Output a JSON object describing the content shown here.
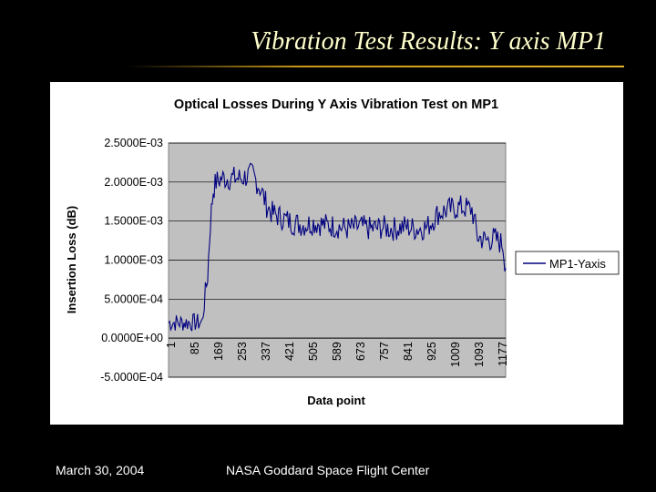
{
  "slide": {
    "title": "Vibration Test Results: Y axis MP1",
    "footer_date": "March 30, 2004",
    "footer_center": "NASA Goddard Space Flight Center"
  },
  "colors": {
    "background": "#000000",
    "title_text": "#ffffcc",
    "plot_area": "#c0c0c0",
    "series_line": "#000080"
  },
  "chart_data": {
    "type": "line",
    "title": "Optical Losses During Y Axis Vibration Test on  MP1",
    "xlabel": "Data point",
    "ylabel": "Insertion Loss (dB)",
    "ylim": [
      -0.0005,
      0.0025
    ],
    "y_ticks": [
      -0.0005,
      0.0,
      0.0005,
      0.001,
      0.0015,
      0.002,
      0.0025
    ],
    "y_tick_labels": [
      "-5.0000E-04",
      "0.0000E+00",
      "5.0000E-04",
      "1.0000E-03",
      "1.5000E-03",
      "2.0000E-03",
      "2.5000E-03"
    ],
    "x_range": [
      1,
      1200
    ],
    "x_tick_labels": [
      "1",
      "85",
      "169",
      "253",
      "337",
      "421",
      "505",
      "589",
      "673",
      "757",
      "841",
      "925",
      "1009",
      "1093",
      "1177"
    ],
    "grid": true,
    "legend": "right",
    "series": [
      {
        "name": "MP1-Yaxis",
        "x": [
          1,
          60,
          120,
          140,
          150,
          160,
          170,
          190,
          230,
          260,
          300,
          330,
          350,
          370,
          400,
          440,
          480,
          520,
          560,
          600,
          640,
          680,
          720,
          760,
          800,
          840,
          880,
          920,
          960,
          1000,
          1040,
          1080,
          1100,
          1130,
          1160,
          1190,
          1200
        ],
        "y": [
          0.0002,
          0.0002,
          0.0002,
          0.0008,
          0.0015,
          0.0019,
          0.002,
          0.00205,
          0.00205,
          0.00205,
          0.0021,
          0.0019,
          0.0017,
          0.0016,
          0.00155,
          0.00148,
          0.00145,
          0.00148,
          0.00145,
          0.00143,
          0.0014,
          0.00143,
          0.0014,
          0.00142,
          0.0014,
          0.00143,
          0.0014,
          0.00142,
          0.0016,
          0.00165,
          0.00168,
          0.00165,
          0.0013,
          0.00125,
          0.00128,
          0.0012,
          0.0009
        ]
      }
    ]
  }
}
